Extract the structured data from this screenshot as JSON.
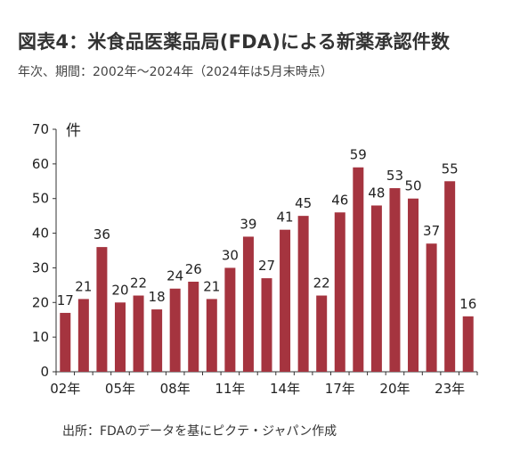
{
  "title": "図表4：米食品医薬品局(FDA)による新薬承認件数",
  "subtitle": "年次、期間：2002年〜2024年（2024年は5月末時点）",
  "source": "出所：FDAのデータを基にピクテ・ジャパン作成",
  "chart_data": {
    "type": "bar",
    "ylabel": "件",
    "ylim": [
      0,
      70
    ],
    "yticks": [
      0,
      10,
      20,
      30,
      40,
      50,
      60,
      70
    ],
    "categories": [
      "2002",
      "2003",
      "2004",
      "2005",
      "2006",
      "2007",
      "2008",
      "2009",
      "2010",
      "2011",
      "2012",
      "2013",
      "2014",
      "2015",
      "2016",
      "2017",
      "2018",
      "2019",
      "2020",
      "2021",
      "2022",
      "2023",
      "2024"
    ],
    "x_tick_labels": [
      {
        "index": 0,
        "label": "02年"
      },
      {
        "index": 3,
        "label": "05年"
      },
      {
        "index": 6,
        "label": "08年"
      },
      {
        "index": 9,
        "label": "11年"
      },
      {
        "index": 12,
        "label": "14年"
      },
      {
        "index": 15,
        "label": "17年"
      },
      {
        "index": 18,
        "label": "20年"
      },
      {
        "index": 21,
        "label": "23年"
      }
    ],
    "values": [
      17,
      21,
      36,
      20,
      22,
      18,
      24,
      26,
      21,
      30,
      39,
      27,
      41,
      45,
      22,
      46,
      59,
      48,
      53,
      50,
      37,
      55,
      16
    ],
    "bar_color": "#A5343F",
    "grid": false,
    "legend": "none"
  }
}
